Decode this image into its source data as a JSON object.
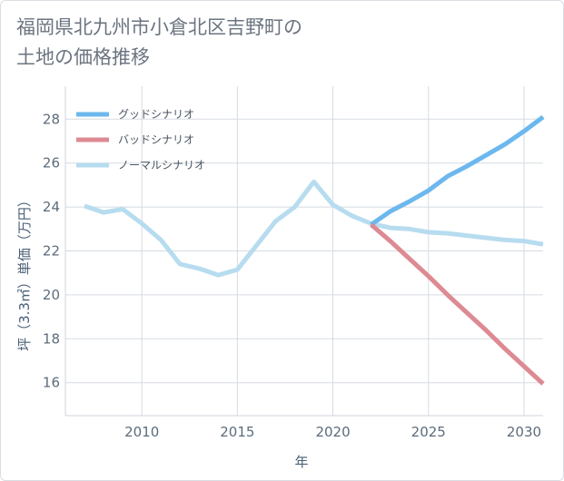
{
  "title_line1": "福岡県北九州市小倉北区吉野町の",
  "title_line2": "土地の価格推移",
  "chart_data": {
    "type": "line",
    "title": "福岡県北九州市小倉北区吉野町の土地の価格推移",
    "xlabel": "年",
    "ylabel": "坪（3.3㎡）単価（万円）",
    "xlim": [
      2006,
      2031
    ],
    "ylim": [
      14.5,
      29.5
    ],
    "xticks": [
      2010,
      2015,
      2020,
      2025,
      2030
    ],
    "yticks": [
      16,
      18,
      20,
      22,
      24,
      26,
      28
    ],
    "grid": true,
    "legend_position": "top-left",
    "series": [
      {
        "name": "グッドシナリオ",
        "color": "#6cb8ee",
        "x": [
          2022,
          2023,
          2024,
          2025,
          2026,
          2027,
          2028,
          2029,
          2030,
          2031
        ],
        "y": [
          23.2,
          23.8,
          24.25,
          24.75,
          25.4,
          25.85,
          26.35,
          26.85,
          27.45,
          28.1
        ]
      },
      {
        "name": "バッドシナリオ",
        "color": "#dd8a93",
        "x": [
          2022,
          2023,
          2024,
          2025,
          2026,
          2027,
          2028,
          2029,
          2030,
          2031
        ],
        "y": [
          23.2,
          22.45,
          21.65,
          20.85,
          20.0,
          19.2,
          18.4,
          17.55,
          16.75,
          15.95
        ]
      },
      {
        "name": "ノーマルシナリオ",
        "color": "#b7dcef",
        "x": [
          2007,
          2008,
          2009,
          2010,
          2011,
          2012,
          2013,
          2014,
          2015,
          2016,
          2017,
          2018,
          2019,
          2020,
          2021,
          2022,
          2023,
          2024,
          2025,
          2026,
          2027,
          2028,
          2029,
          2030,
          2031
        ],
        "y": [
          24.05,
          23.75,
          23.9,
          23.25,
          22.5,
          21.4,
          21.2,
          20.9,
          21.15,
          22.25,
          23.35,
          24.0,
          25.15,
          24.1,
          23.6,
          23.25,
          23.05,
          23.0,
          22.85,
          22.8,
          22.7,
          22.6,
          22.5,
          22.45,
          22.3
        ]
      }
    ]
  }
}
